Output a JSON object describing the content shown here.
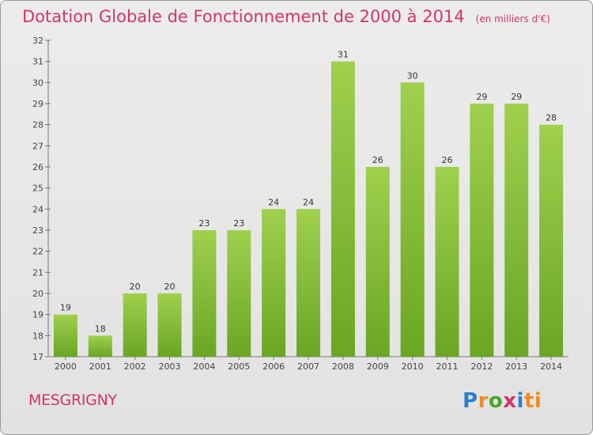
{
  "title": {
    "main": "Dotation Globale de Fonctionnement de 2000 à 2014",
    "unit": "(en milliers d'€)"
  },
  "commune": "MESGRIGNY",
  "logo": {
    "text": "Proxiti",
    "letters": [
      "P",
      "r",
      "o",
      "x",
      "i",
      "ti"
    ]
  },
  "colors": {
    "bar": "#8dc63f",
    "bar_dark": "#6aa623",
    "title": "#d2336f",
    "background": "#e6e6e6"
  },
  "chart_data": {
    "type": "bar",
    "categories": [
      "2000",
      "2001",
      "2002",
      "2003",
      "2004",
      "2005",
      "2006",
      "2007",
      "2008",
      "2009",
      "2010",
      "2011",
      "2012",
      "2013",
      "2014"
    ],
    "values": [
      19,
      18,
      20,
      20,
      23,
      23,
      24,
      24,
      31,
      26,
      30,
      26,
      29,
      29,
      28
    ],
    "data_labels": [
      "19",
      "18",
      "20",
      "20",
      "23",
      "23",
      "24",
      "24",
      "31",
      "26",
      "30",
      "26",
      "29",
      "29",
      "28"
    ],
    "ylim": [
      17,
      32
    ],
    "yticks": [
      17,
      18,
      19,
      20,
      21,
      22,
      23,
      24,
      25,
      26,
      27,
      28,
      29,
      30,
      31,
      32
    ],
    "grid": false,
    "xlabel": "",
    "ylabel": ""
  }
}
